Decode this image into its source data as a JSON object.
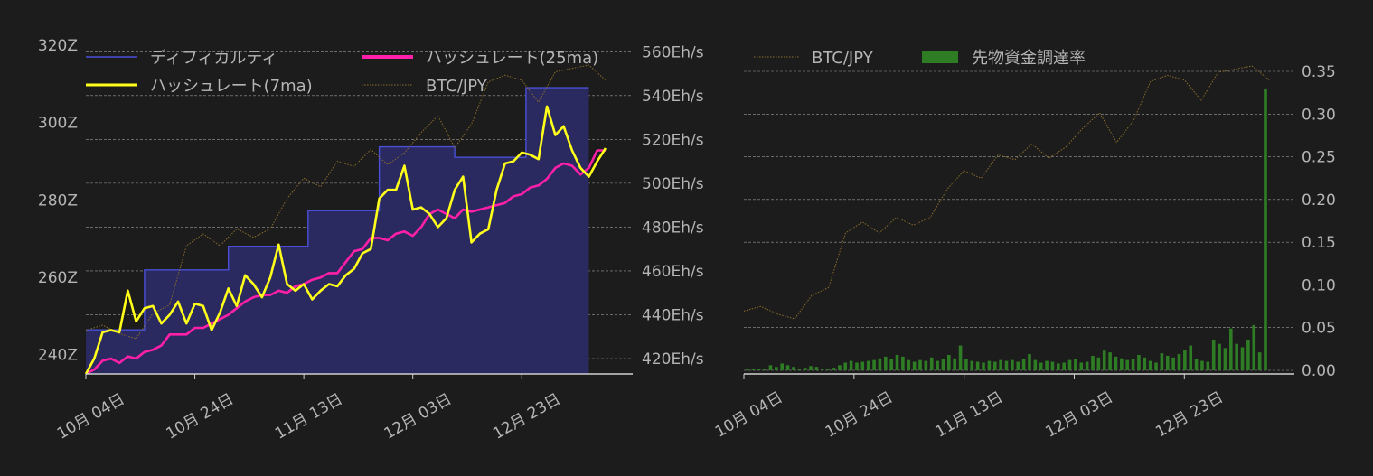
{
  "chart_data": [
    {
      "type": "line",
      "x_ticks": [
        "10月 04日",
        "10月 24日",
        "11月 13日",
        "12月 03日",
        "12月 23日"
      ],
      "left_axis": {
        "ticks": [
          "240Z",
          "260Z",
          "280Z",
          "300Z",
          "320Z"
        ],
        "range": [
          235,
          320
        ],
        "unit": "Z"
      },
      "right_axis": {
        "ticks": [
          "420Eh/s",
          "440Eh/s",
          "460Eh/s",
          "480Eh/s",
          "500Eh/s",
          "520Eh/s",
          "540Eh/s",
          "560Eh/s"
        ],
        "range": [
          413,
          563
        ],
        "unit": "Eh/s"
      },
      "grid": true,
      "legend_position": "top",
      "series": [
        {
          "name": "ディフィカルティ",
          "style": "filled-step",
          "axis": "left",
          "color": "#4a4fd6",
          "values": [
            [
              0,
              246.4
            ],
            [
              14,
              246.4
            ],
            [
              14,
              261.9
            ],
            [
              34,
              261.9
            ],
            [
              34,
              268.0
            ],
            [
              53,
              268.0
            ],
            [
              53,
              277.2
            ],
            [
              70,
              277.2
            ],
            [
              70,
              293.7
            ],
            [
              88,
              293.7
            ],
            [
              88,
              291.0
            ],
            [
              105,
              291.0
            ],
            [
              105,
              309.0
            ],
            [
              120,
              309.0
            ]
          ]
        },
        {
          "name": "ハッシュレート(25ma)",
          "style": "line",
          "axis": "right",
          "color": "#ff1fa8",
          "values": [
            [
              0,
              413
            ],
            [
              2,
              415
            ],
            [
              4,
              419
            ],
            [
              6,
              420
            ],
            [
              8,
              418
            ],
            [
              10,
              421
            ],
            [
              12,
              420
            ],
            [
              14,
              423
            ],
            [
              16,
              424
            ],
            [
              18,
              426
            ],
            [
              20,
              431
            ],
            [
              22,
              431
            ],
            [
              24,
              431
            ],
            [
              26,
              434
            ],
            [
              28,
              434
            ],
            [
              30,
              436
            ],
            [
              32,
              438
            ],
            [
              34,
              440
            ],
            [
              36,
              443
            ],
            [
              38,
              446
            ],
            [
              40,
              448
            ],
            [
              42,
              449
            ],
            [
              44,
              449
            ],
            [
              46,
              451
            ],
            [
              48,
              450
            ],
            [
              50,
              453
            ],
            [
              52,
              454
            ],
            [
              54,
              456
            ],
            [
              56,
              457
            ],
            [
              58,
              459
            ],
            [
              60,
              459
            ],
            [
              62,
              464
            ],
            [
              64,
              469
            ],
            [
              66,
              470
            ],
            [
              68,
              475
            ],
            [
              70,
              475
            ],
            [
              72,
              474
            ],
            [
              74,
              477
            ],
            [
              76,
              478
            ],
            [
              78,
              476
            ],
            [
              80,
              480
            ],
            [
              82,
              486
            ],
            [
              84,
              488
            ],
            [
              86,
              486
            ],
            [
              88,
              484
            ],
            [
              90,
              488
            ],
            [
              92,
              487
            ],
            [
              94,
              488
            ],
            [
              96,
              489
            ],
            [
              98,
              490
            ],
            [
              100,
              491
            ],
            [
              102,
              494
            ],
            [
              104,
              495
            ],
            [
              106,
              498
            ],
            [
              108,
              499
            ],
            [
              110,
              502
            ],
            [
              112,
              507
            ],
            [
              114,
              509
            ],
            [
              116,
              508
            ],
            [
              118,
              504
            ],
            [
              120,
              507
            ],
            [
              122,
              515
            ],
            [
              124,
              515
            ]
          ]
        },
        {
          "name": "ハッシュレート(7ma)",
          "style": "line",
          "axis": "right",
          "color": "#ffff1a",
          "values": [
            [
              0,
              413
            ],
            [
              2,
              420
            ],
            [
              4,
              432
            ],
            [
              6,
              433
            ],
            [
              8,
              432
            ],
            [
              10,
              451
            ],
            [
              12,
              437
            ],
            [
              14,
              443
            ],
            [
              16,
              444
            ],
            [
              18,
              436
            ],
            [
              20,
              440
            ],
            [
              22,
              446
            ],
            [
              24,
              436
            ],
            [
              26,
              445
            ],
            [
              28,
              444
            ],
            [
              30,
              433
            ],
            [
              32,
              441
            ],
            [
              34,
              452
            ],
            [
              36,
              444
            ],
            [
              38,
              458
            ],
            [
              40,
              454
            ],
            [
              42,
              448
            ],
            [
              44,
              457
            ],
            [
              46,
              472
            ],
            [
              48,
              454
            ],
            [
              50,
              451
            ],
            [
              52,
              454
            ],
            [
              54,
              447
            ],
            [
              56,
              451
            ],
            [
              58,
              454
            ],
            [
              60,
              453
            ],
            [
              62,
              458
            ],
            [
              64,
              461
            ],
            [
              66,
              468
            ],
            [
              68,
              470
            ],
            [
              70,
              493
            ],
            [
              72,
              497
            ],
            [
              74,
              497
            ],
            [
              76,
              508
            ],
            [
              78,
              488
            ],
            [
              80,
              489
            ],
            [
              82,
              486
            ],
            [
              84,
              480
            ],
            [
              86,
              484
            ],
            [
              88,
              497
            ],
            [
              90,
              503
            ],
            [
              92,
              473
            ],
            [
              94,
              477
            ],
            [
              96,
              479
            ],
            [
              98,
              497
            ],
            [
              100,
              509
            ],
            [
              102,
              510
            ],
            [
              104,
              514
            ],
            [
              106,
              513
            ],
            [
              108,
              511
            ],
            [
              110,
              535
            ],
            [
              112,
              522
            ],
            [
              114,
              526
            ],
            [
              116,
              515
            ],
            [
              118,
              507
            ],
            [
              120,
              503
            ],
            [
              122,
              510
            ],
            [
              124,
              516
            ]
          ]
        },
        {
          "name": "BTC/JPY",
          "style": "dotted",
          "axis": "hidden",
          "color": "#8a6d2a",
          "values": [
            [
              0,
              30
            ],
            [
              4,
              33
            ],
            [
              8,
              28
            ],
            [
              12,
              25
            ],
            [
              16,
              40
            ],
            [
              20,
              45
            ],
            [
              24,
              80
            ],
            [
              28,
              87
            ],
            [
              32,
              80
            ],
            [
              36,
              90
            ],
            [
              40,
              85
            ],
            [
              44,
              90
            ],
            [
              48,
              108
            ],
            [
              52,
              120
            ],
            [
              56,
              115
            ],
            [
              60,
              130
            ],
            [
              64,
              127
            ],
            [
              68,
              137
            ],
            [
              72,
              128
            ],
            [
              76,
              135
            ],
            [
              80,
              147
            ],
            [
              84,
              157
            ],
            [
              88,
              138
            ],
            [
              92,
              152
            ],
            [
              96,
              177
            ],
            [
              100,
              181
            ],
            [
              104,
              178
            ],
            [
              108,
              165
            ],
            [
              112,
              183
            ],
            [
              116,
              185
            ],
            [
              120,
              187
            ],
            [
              124,
              178
            ]
          ]
        }
      ]
    },
    {
      "type": "bar",
      "x_ticks": [
        "10月 04日",
        "10月 24日",
        "11月 13日",
        "12月 03日",
        "12月 23日"
      ],
      "right_axis": {
        "ticks": [
          "0.00",
          "0.05",
          "0.10",
          "0.15",
          "0.20",
          "0.25",
          "0.30",
          "0.35"
        ],
        "range": [
          0,
          0.35
        ]
      },
      "grid": true,
      "legend_position": "top",
      "series": [
        {
          "name": "BTC/JPY",
          "style": "dotted",
          "axis": "hidden",
          "color": "#8a6d2a",
          "values": [
            [
              0,
              30
            ],
            [
              4,
              33
            ],
            [
              8,
              28
            ],
            [
              12,
              25
            ],
            [
              16,
              40
            ],
            [
              20,
              45
            ],
            [
              24,
              80
            ],
            [
              28,
              87
            ],
            [
              32,
              80
            ],
            [
              36,
              90
            ],
            [
              40,
              85
            ],
            [
              44,
              90
            ],
            [
              48,
              108
            ],
            [
              52,
              120
            ],
            [
              56,
              115
            ],
            [
              60,
              130
            ],
            [
              64,
              127
            ],
            [
              68,
              137
            ],
            [
              72,
              128
            ],
            [
              76,
              135
            ],
            [
              80,
              147
            ],
            [
              84,
              157
            ],
            [
              88,
              138
            ],
            [
              92,
              152
            ],
            [
              96,
              177
            ],
            [
              100,
              181
            ],
            [
              104,
              178
            ],
            [
              108,
              165
            ],
            [
              112,
              183
            ],
            [
              116,
              185
            ],
            [
              120,
              187
            ],
            [
              124,
              178
            ]
          ]
        },
        {
          "name": "先物資金調達率",
          "style": "bar",
          "axis": "right",
          "color": "#2e7d25",
          "values": [
            0.002,
            0.002,
            0.001,
            0.002,
            0.006,
            0.004,
            0.008,
            0.006,
            0.004,
            0.002,
            0.003,
            0.005,
            0.004,
            0.001,
            0.002,
            0.003,
            0.006,
            0.009,
            0.011,
            0.009,
            0.01,
            0.011,
            0.012,
            0.014,
            0.016,
            0.013,
            0.018,
            0.016,
            0.012,
            0.01,
            0.012,
            0.011,
            0.015,
            0.011,
            0.013,
            0.018,
            0.014,
            0.029,
            0.013,
            0.011,
            0.01,
            0.009,
            0.011,
            0.01,
            0.012,
            0.011,
            0.012,
            0.01,
            0.013,
            0.019,
            0.012,
            0.009,
            0.011,
            0.01,
            0.008,
            0.009,
            0.012,
            0.013,
            0.009,
            0.01,
            0.017,
            0.015,
            0.023,
            0.021,
            0.016,
            0.014,
            0.012,
            0.013,
            0.018,
            0.015,
            0.011,
            0.009,
            0.02,
            0.017,
            0.015,
            0.019,
            0.024,
            0.029,
            0.013,
            0.011,
            0.01,
            0.036,
            0.031,
            0.026,
            0.049,
            0.031,
            0.027,
            0.036,
            0.053,
            0.021,
            0.33
          ]
        }
      ]
    }
  ]
}
